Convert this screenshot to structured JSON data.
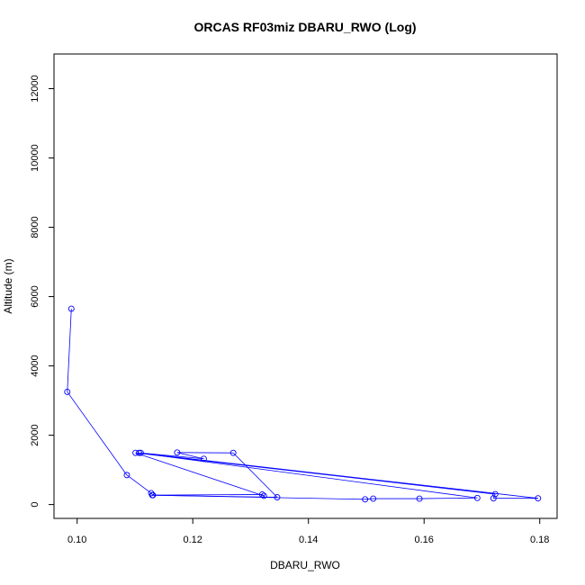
{
  "chart_data": {
    "type": "line",
    "title": "ORCAS RF03miz DBARU_RWO (Log)",
    "xlabel": "DBARU_RWO",
    "ylabel": "Altitude (m)",
    "xlim": [
      0.096,
      0.183
    ],
    "ylim": [
      -400,
      13000
    ],
    "xticks": [
      "0.10",
      "0.12",
      "0.14",
      "0.16",
      "0.18"
    ],
    "yticks": [
      "0",
      "2000",
      "4000",
      "6000",
      "8000",
      "10000",
      "12000"
    ],
    "grid": false,
    "legend": "none",
    "color": "#0000ff",
    "series": [
      {
        "x": [
          0.099,
          0.0983,
          0.1086,
          0.1128,
          0.1131,
          0.132,
          0.1323,
          0.1101,
          0.1723,
          0.172,
          0.1797,
          0.1107,
          0.1692,
          0.1592,
          0.1512,
          0.1498,
          0.113,
          0.1346,
          0.127,
          0.1173,
          0.1219,
          0.111
        ],
        "y": [
          5650,
          3250,
          850,
          330,
          270,
          290,
          250,
          1490,
          300,
          180,
          180,
          1490,
          190,
          170,
          170,
          150,
          270,
          210,
          1490,
          1500,
          1320,
          1490
        ]
      }
    ]
  }
}
